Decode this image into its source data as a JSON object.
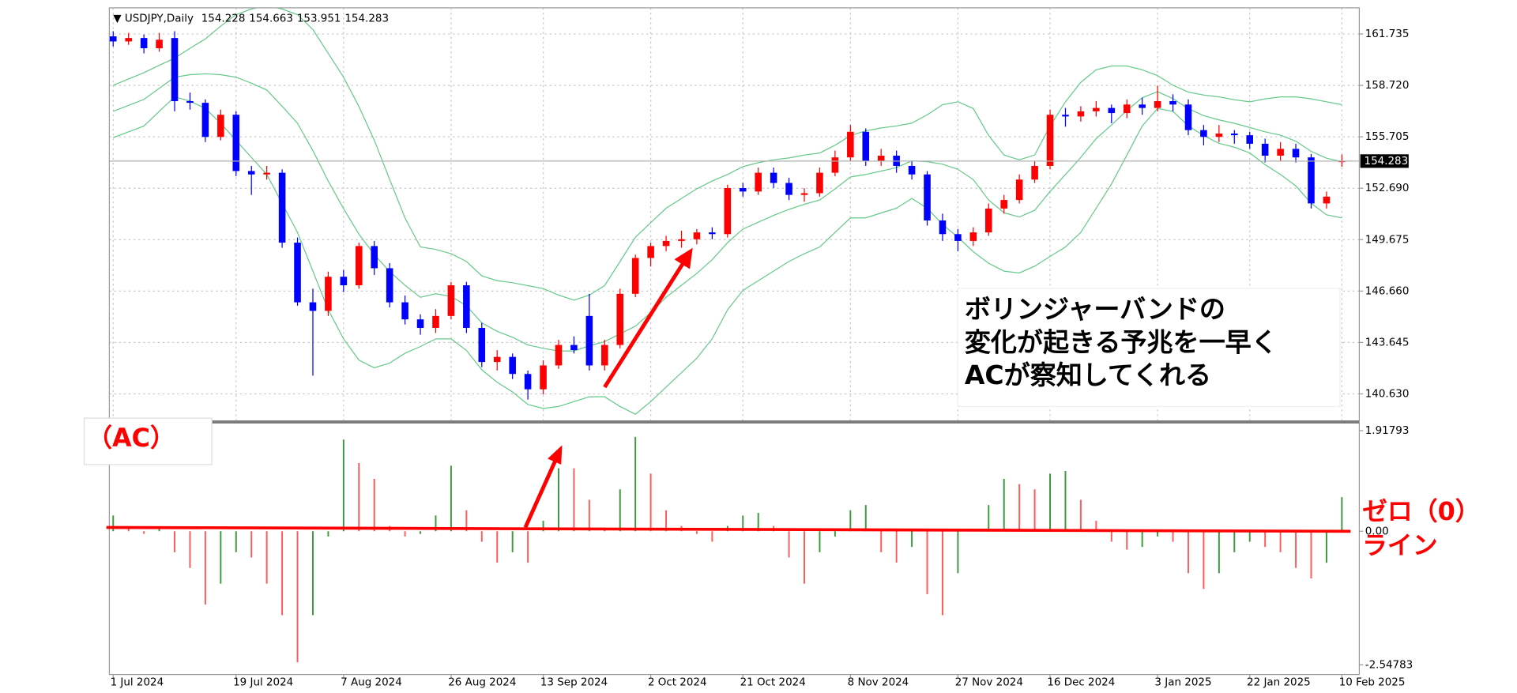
{
  "chart_data": [
    {
      "type": "candlestick",
      "title": "USDJPY,Daily",
      "open": [
        161.6,
        161.3,
        161.5,
        160.9,
        161.5,
        157.8,
        157.7,
        155.7,
        157.0,
        153.7,
        153.5,
        153.6,
        149.5,
        146.0,
        145.5,
        147.5,
        147.0,
        149.3,
        148.0,
        146.0,
        145.0,
        144.5,
        145.2,
        147.0,
        144.5,
        142.5,
        142.8,
        141.8,
        140.9,
        142.3,
        143.5,
        145.2,
        142.3,
        143.5,
        146.5,
        148.6,
        149.3,
        149.6,
        149.7,
        150.1,
        150.0,
        152.7,
        152.5,
        153.6,
        153.0,
        152.3,
        152.4,
        153.6,
        154.5,
        156.0,
        154.3,
        154.6,
        154.0,
        153.5,
        150.8,
        150.0,
        149.6,
        150.1,
        151.5,
        152.0,
        153.2,
        154.0,
        157.0,
        156.9,
        157.2,
        157.4,
        157.1,
        157.6,
        157.4,
        157.8,
        157.6,
        156.1,
        155.7,
        155.9,
        155.8,
        155.3,
        154.6,
        155.0,
        154.5,
        151.8,
        154.228
      ],
      "high": [
        161.9,
        161.8,
        161.7,
        161.8,
        161.9,
        158.3,
        157.9,
        157.3,
        157.2,
        154.0,
        154.0,
        153.8,
        149.8,
        146.8,
        147.8,
        147.9,
        149.5,
        149.6,
        148.3,
        146.4,
        145.3,
        145.6,
        147.2,
        147.2,
        144.8,
        143.2,
        143.0,
        142.0,
        142.6,
        143.8,
        144.0,
        146.5,
        143.8,
        146.8,
        148.8,
        149.5,
        149.9,
        150.2,
        150.3,
        150.4,
        152.9,
        153.0,
        153.9,
        153.9,
        153.3,
        152.7,
        153.9,
        154.9,
        156.4,
        156.2,
        155.0,
        154.9,
        154.3,
        153.7,
        151.2,
        150.3,
        150.4,
        151.8,
        152.3,
        153.5,
        154.3,
        157.3,
        157.4,
        157.5,
        157.8,
        157.6,
        157.9,
        158.0,
        158.7,
        158.2,
        157.9,
        156.4,
        156.4,
        156.1,
        156.0,
        155.6,
        155.4,
        155.3,
        154.7,
        152.5,
        154.663
      ],
      "low": [
        161.0,
        161.1,
        160.6,
        160.7,
        157.2,
        157.3,
        155.4,
        155.5,
        153.4,
        152.3,
        153.2,
        149.2,
        145.8,
        141.7,
        145.2,
        146.6,
        146.8,
        147.6,
        145.7,
        144.7,
        144.1,
        144.2,
        145.0,
        144.2,
        142.2,
        142.0,
        141.5,
        140.3,
        140.6,
        142.1,
        143.0,
        142.0,
        142.0,
        143.3,
        146.3,
        148.1,
        149.0,
        149.2,
        149.4,
        149.7,
        149.8,
        152.2,
        152.3,
        152.7,
        152.0,
        151.9,
        152.2,
        153.4,
        154.3,
        154.0,
        154.0,
        153.6,
        153.2,
        150.5,
        149.6,
        149.0,
        149.3,
        149.9,
        151.2,
        151.8,
        153.0,
        153.8,
        156.3,
        156.6,
        156.9,
        156.5,
        156.8,
        157.0,
        157.2,
        157.2,
        155.8,
        155.2,
        155.4,
        155.3,
        155.0,
        154.2,
        154.3,
        154.2,
        151.5,
        151.5,
        153.951
      ],
      "close": [
        161.3,
        161.5,
        160.9,
        161.4,
        157.8,
        157.7,
        155.7,
        157.0,
        153.7,
        153.5,
        153.6,
        149.5,
        146.0,
        145.5,
        147.5,
        147.0,
        149.3,
        148.0,
        146.0,
        145.0,
        144.5,
        145.2,
        147.0,
        144.5,
        142.5,
        142.8,
        141.8,
        140.9,
        142.3,
        143.5,
        143.2,
        142.3,
        143.5,
        146.5,
        148.6,
        149.3,
        149.6,
        149.7,
        150.1,
        150.0,
        152.7,
        152.5,
        153.6,
        153.0,
        152.3,
        152.4,
        153.6,
        154.5,
        156.0,
        154.3,
        154.6,
        154.0,
        153.5,
        150.8,
        150.0,
        149.6,
        150.1,
        151.5,
        152.0,
        153.2,
        154.0,
        157.0,
        156.9,
        157.2,
        157.4,
        157.1,
        157.6,
        157.4,
        157.8,
        157.6,
        156.1,
        155.7,
        155.9,
        155.8,
        155.3,
        154.6,
        155.0,
        154.5,
        151.8,
        152.2,
        154.283
      ],
      "up_color": "#ff0000",
      "down_color": "#0000ff",
      "bands": {
        "color": "#66c98a",
        "upper": [
          158.73,
          159.1,
          159.47,
          159.9,
          160.32,
          160.9,
          161.45,
          162.2,
          162.87,
          163.2,
          163.4,
          163.2,
          162.87,
          162.0,
          160.6,
          159.2,
          157.48,
          155.5,
          153.2,
          150.95,
          149.25,
          149.1,
          148.85,
          148.4,
          147.55,
          147.27,
          147.15,
          146.98,
          146.81,
          146.42,
          146.13,
          146.42,
          146.98,
          148.4,
          149.82,
          150.67,
          151.52,
          152.09,
          152.66,
          153.11,
          153.5,
          153.96,
          154.19,
          154.36,
          154.47,
          154.64,
          154.76,
          155.21,
          155.78,
          156.06,
          156.23,
          156.34,
          156.51,
          157.0,
          157.59,
          157.76,
          157.37,
          155.78,
          154.64,
          154.36,
          154.64,
          156.34,
          157.76,
          158.9,
          159.64,
          159.86,
          159.86,
          159.64,
          159.3,
          158.73,
          158.33,
          158.16,
          158.05,
          157.88,
          157.76,
          157.93,
          158.05,
          158.05,
          157.93,
          157.76,
          157.59
        ],
        "middle": [
          157.2,
          157.55,
          157.9,
          158.55,
          159.2,
          159.35,
          159.4,
          159.35,
          159.2,
          158.85,
          158.45,
          157.5,
          156.5,
          154.9,
          153.1,
          151.5,
          150.0,
          148.8,
          147.8,
          147.0,
          146.3,
          146.5,
          146.35,
          145.8,
          144.8,
          144.3,
          143.95,
          143.5,
          143.3,
          143.15,
          143.15,
          143.45,
          143.7,
          144.15,
          144.6,
          145.4,
          146.3,
          147.0,
          147.7,
          148.5,
          149.5,
          150.3,
          150.7,
          151.1,
          151.45,
          151.75,
          152.0,
          152.65,
          153.35,
          153.5,
          153.7,
          153.9,
          154.3,
          154.25,
          154.1,
          153.8,
          153.2,
          152.0,
          151.25,
          151.0,
          151.4,
          152.5,
          153.5,
          154.5,
          155.6,
          156.4,
          157.25,
          158.0,
          158.35,
          157.95,
          157.35,
          156.95,
          156.7,
          156.5,
          156.25,
          156.0,
          155.8,
          155.45,
          154.85,
          154.45,
          154.25
        ],
        "lower": [
          155.66,
          156.0,
          156.34,
          157.2,
          158.05,
          157.8,
          157.37,
          156.5,
          155.5,
          154.5,
          153.5,
          151.8,
          150.1,
          147.83,
          145.56,
          143.86,
          142.61,
          142.16,
          142.44,
          143.01,
          143.41,
          143.86,
          143.86,
          143.18,
          142.05,
          141.31,
          140.74,
          140.01,
          139.78,
          139.89,
          140.18,
          140.46,
          140.46,
          139.89,
          139.44,
          140.18,
          141.03,
          141.88,
          142.73,
          143.86,
          145.56,
          146.7,
          147.27,
          147.83,
          148.4,
          148.85,
          149.25,
          150.1,
          150.95,
          150.95,
          151.24,
          151.52,
          152.09,
          151.52,
          150.56,
          149.82,
          148.97,
          148.29,
          147.83,
          147.72,
          148.12,
          148.69,
          149.25,
          150.1,
          151.52,
          152.94,
          154.64,
          156.34,
          157.37,
          157.2,
          156.34,
          155.78,
          155.32,
          155.1,
          154.76,
          154.07,
          153.5,
          152.83,
          151.81,
          151.13,
          150.95
        ]
      },
      "ylim": [
        139.04,
        163.27
      ],
      "yticks": [
        161.735,
        {
          "value": 158.72,
          "label": "158.720"
        },
        155.705,
        {
          "value": 152.69,
          "label": "152.690"
        },
        149.675,
        {
          "value": 146.66,
          "label": "146.660"
        },
        143.645,
        {
          "value": 140.63,
          "label": "140.630"
        }
      ],
      "grid": true,
      "annotations": [
        "ボリンジャーバンドの",
        "変化が起きる予兆を一早く",
        "ACが察知してくれる"
      ]
    },
    {
      "type": "histogram-bar",
      "title": "（AC）",
      "categories": [
        "1 Jul 2024",
        null,
        null,
        null,
        null,
        null,
        null,
        null,
        "19 Jul 2024",
        null,
        null,
        null,
        null,
        null,
        null,
        "7 Aug 2024",
        null,
        null,
        null,
        null,
        null,
        null,
        "26 Aug 2024",
        null,
        null,
        null,
        null,
        null,
        "13 Sep 2024",
        null,
        null,
        null,
        null,
        null,
        null,
        "2 Oct 2024",
        null,
        null,
        null,
        null,
        null,
        "21 Oct 2024",
        null,
        null,
        null,
        null,
        null,
        null,
        "8 Nov 2024",
        null,
        null,
        null,
        null,
        null,
        null,
        "27 Nov 2024",
        null,
        null,
        null,
        null,
        null,
        "16 Dec 2024",
        null,
        null,
        null,
        null,
        null,
        null,
        "3 Jan 2025",
        null,
        null,
        null,
        null,
        null,
        "22 Jan 2025",
        null,
        null,
        null,
        null,
        null,
        "10 Feb 2025"
      ],
      "values": [
        0.3,
        0.05,
        -0.05,
        0.05,
        -0.4,
        -0.7,
        -1.4,
        -1.0,
        -0.4,
        -0.5,
        -1.0,
        -1.6,
        -2.5,
        -1.6,
        -0.1,
        1.75,
        1.3,
        1.0,
        0.1,
        -0.1,
        -0.05,
        0.3,
        1.25,
        0.4,
        -0.2,
        -0.6,
        -0.4,
        -0.6,
        0.2,
        1.2,
        1.2,
        0.6,
        0.05,
        0.8,
        1.8,
        1.1,
        0.4,
        0.1,
        -0.05,
        -0.2,
        0.1,
        0.3,
        0.35,
        0.1,
        -0.5,
        -1.0,
        -0.4,
        -0.1,
        0.4,
        0.5,
        -0.4,
        -0.6,
        -0.3,
        -1.2,
        -1.6,
        -0.8,
        0.05,
        0.5,
        1.0,
        0.9,
        0.8,
        1.1,
        1.15,
        0.6,
        0.2,
        -0.2,
        -0.35,
        -0.3,
        -0.1,
        -0.2,
        -0.8,
        -1.1,
        -0.8,
        -0.4,
        -0.2,
        -0.3,
        -0.4,
        -0.7,
        -0.9,
        -0.6,
        0.65
      ],
      "up_color": "#3a9a3a",
      "down_color": "#ff5a5a",
      "ylim": [
        -2.733,
        2.066
      ],
      "yticks": [
        1.91793,
        {
          "value": 0,
          "label": "0.00"
        },
        -2.54783
      ],
      "annotations": [
        "ゼロ（0）",
        "ライン"
      ]
    }
  ]
}
